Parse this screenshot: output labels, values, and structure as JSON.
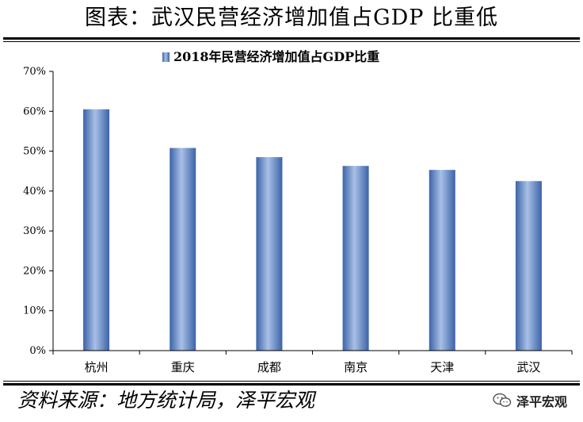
{
  "header": {
    "title": "图表：武汉民营经济增加值占GDP 比重低"
  },
  "footer": {
    "source": "资料来源：地方统计局，泽平宏观",
    "brand": "泽平宏观",
    "brand_icon": "wechat-icon"
  },
  "chart_data": {
    "type": "bar",
    "categories": [
      "杭州",
      "重庆",
      "成都",
      "南京",
      "天津",
      "武汉"
    ],
    "series": [
      {
        "name": "2018年民营经济增加值占GDP比重",
        "values": [
          60.5,
          50.8,
          48.5,
          46.3,
          45.3,
          42.5
        ]
      }
    ],
    "ylim": [
      0,
      70
    ],
    "yticks": [
      "0%",
      "10%",
      "20%",
      "30%",
      "40%",
      "50%",
      "60%",
      "70%"
    ],
    "ytick_values": [
      0,
      10,
      20,
      30,
      40,
      50,
      60,
      70
    ],
    "legend_position": "top-center",
    "grid": false,
    "colors": {
      "bar_dark": "#3c63a8",
      "bar_light": "#a8c0e6",
      "bar_mid": "#6f93d0"
    }
  }
}
